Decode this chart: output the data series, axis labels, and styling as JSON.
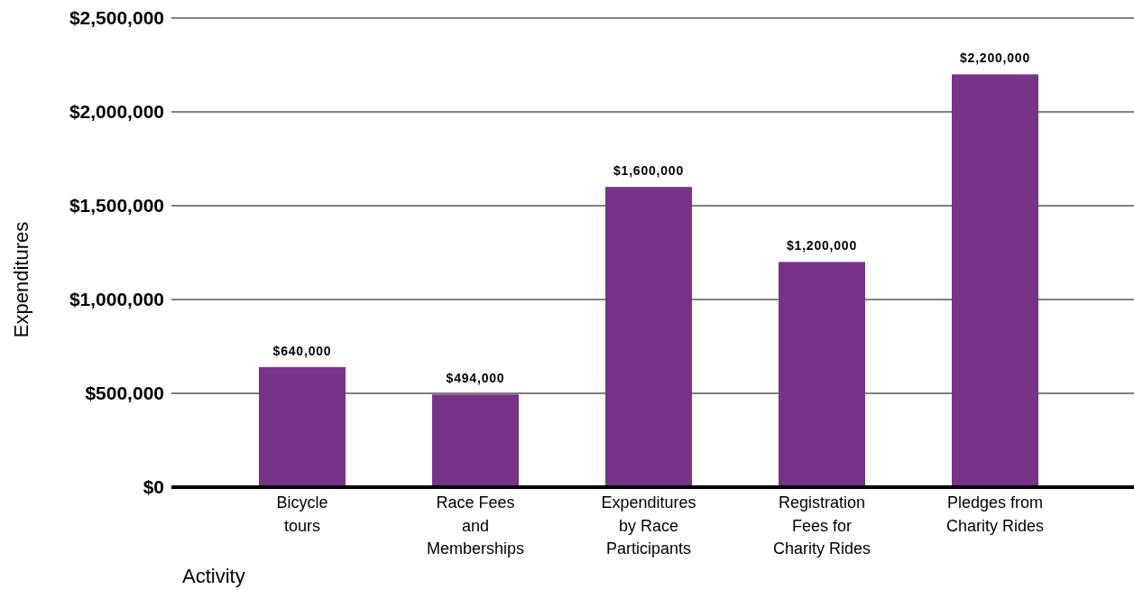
{
  "chart_data": {
    "type": "bar",
    "xlabel": "Activity",
    "ylabel": "Expenditures",
    "categories": [
      "Bicycle\ntours",
      "Race Fees\nand\nMemberships",
      "Expenditures\nby Race\nParticipants",
      "Registration\nFees for\nCharity Rides",
      "Pledges from\nCharity Rides"
    ],
    "values": [
      640000,
      494000,
      1600000,
      1200000,
      2200000
    ],
    "color": "#773388",
    "ylim": [
      0,
      2500000
    ],
    "yticks": [
      {
        "value": 0,
        "label": "$0"
      },
      {
        "value": 500000,
        "label": "$500,000"
      },
      {
        "value": 1000000,
        "label": "$1,000,000"
      },
      {
        "value": 1500000,
        "label": "$1,500,000"
      },
      {
        "value": 2000000,
        "label": "$2,000,000"
      },
      {
        "value": 2500000,
        "label": "$2,500,000"
      }
    ],
    "value_labels": [
      "$640,000",
      "$494,000",
      "$1,600,000",
      "$1,200,000",
      "$2,200,000"
    ],
    "grid": "y"
  }
}
